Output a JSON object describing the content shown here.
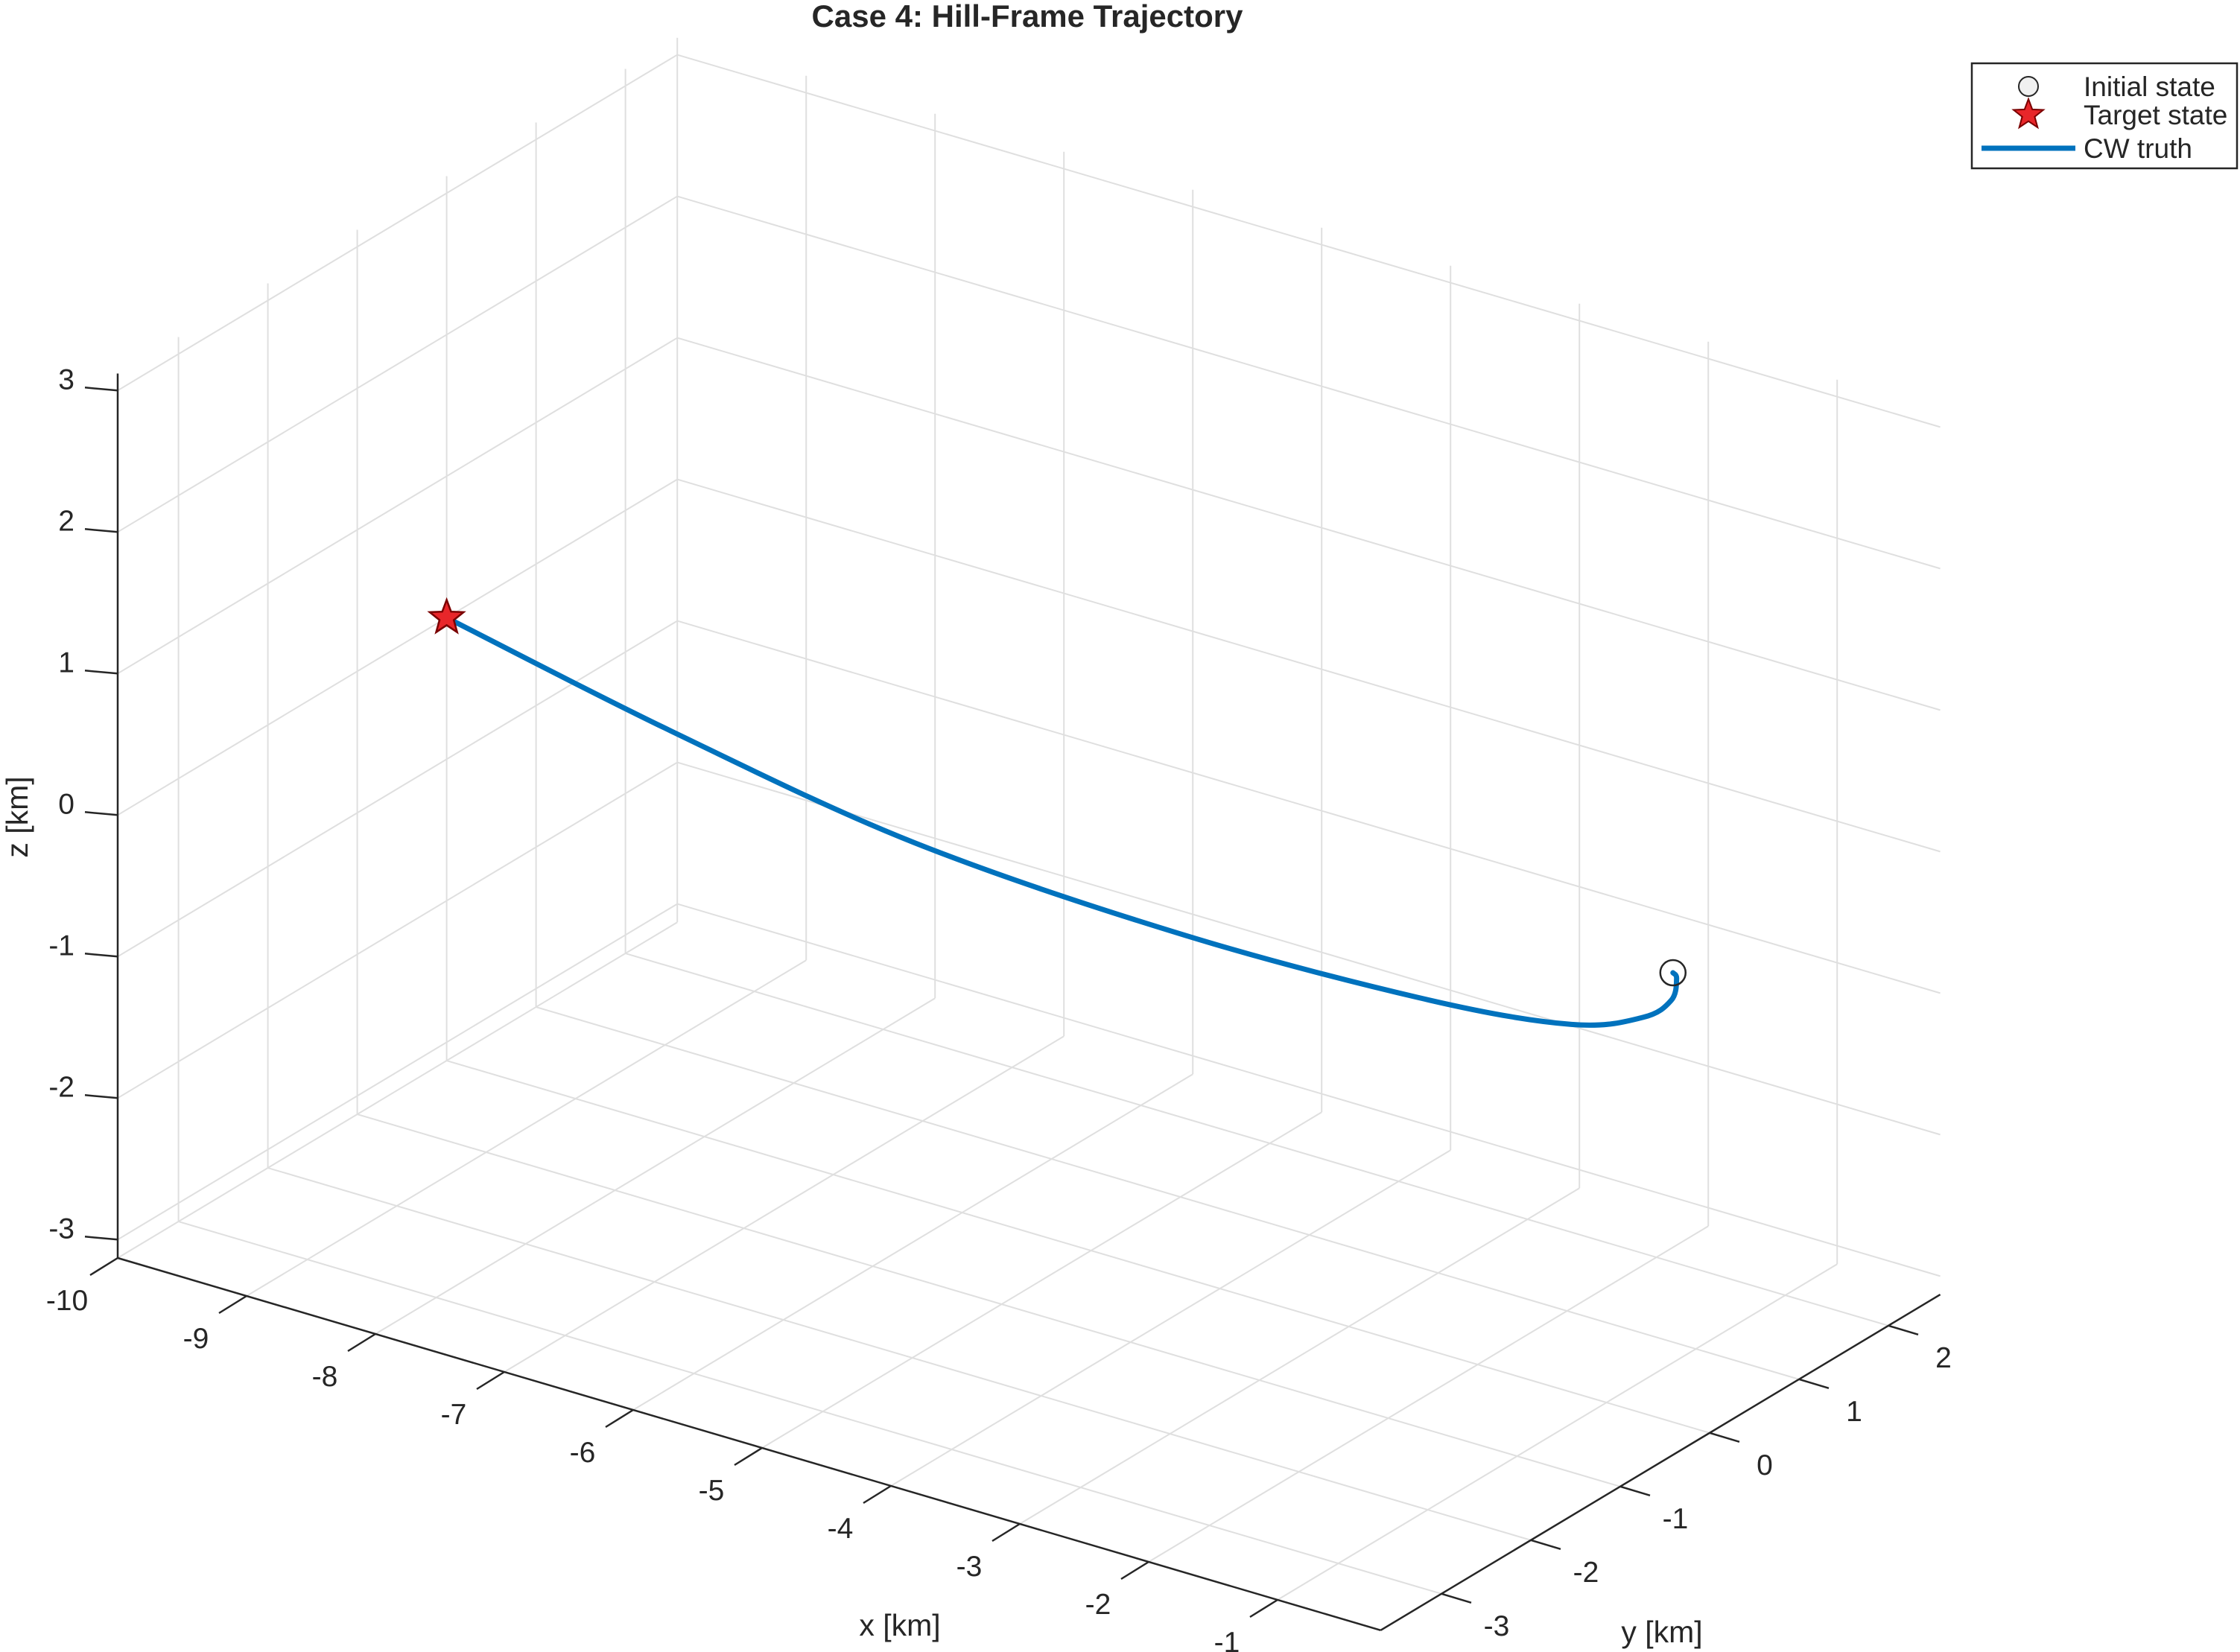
{
  "chart_data": {
    "type": "line3d",
    "title": "Case 4: Hill-Frame Trajectory",
    "xlabel": "x [km]",
    "ylabel": "y [km]",
    "zlabel": "z [km]",
    "xlim": [
      -10,
      -0.2
    ],
    "ylim": [
      -3.68,
      2.58
    ],
    "zlim": [
      -3.13,
      3.12
    ],
    "xticks": [
      -10,
      -9,
      -8,
      -7,
      -6,
      -5,
      -4,
      -3,
      -2,
      -1
    ],
    "yticks": [
      -3,
      -2,
      -1,
      0,
      1,
      2
    ],
    "zticks": [
      -3,
      -2,
      -1,
      0,
      1,
      2,
      3
    ],
    "grid": true,
    "legend_position": "top-right",
    "legend": [
      {
        "label": "Initial state",
        "marker": "circle"
      },
      {
        "label": "Target state",
        "marker": "star"
      },
      {
        "label": "CW truth",
        "marker": "line"
      }
    ],
    "series": [
      {
        "name": "CW truth",
        "color": "#0072BD",
        "x": [
          -0.54,
          -0.47,
          -0.31,
          -0.31,
          -0.62,
          -1.57,
          -3.4,
          -5.61,
          -7.85,
          -10.0
        ],
        "y": [
          0.08,
          0.02,
          -0.27,
          -0.59,
          -0.94,
          -1.16,
          -1.25,
          -1.09,
          -0.59,
          0.0
        ],
        "z": [
          0,
          0,
          0,
          0,
          0,
          0,
          0,
          0,
          0,
          0
        ]
      }
    ],
    "markers": {
      "initial_state": {
        "x": -0.54,
        "y": 0.08,
        "z": 0,
        "color": "#f0f0f0",
        "edge": "#262626"
      },
      "target_state": {
        "x": -10.0,
        "y": 0.0,
        "z": 0,
        "color": "#E8262A",
        "edge": "#7a0000"
      }
    },
    "colors": {
      "grid": "#dfdfdf",
      "axis": "#262626"
    }
  }
}
